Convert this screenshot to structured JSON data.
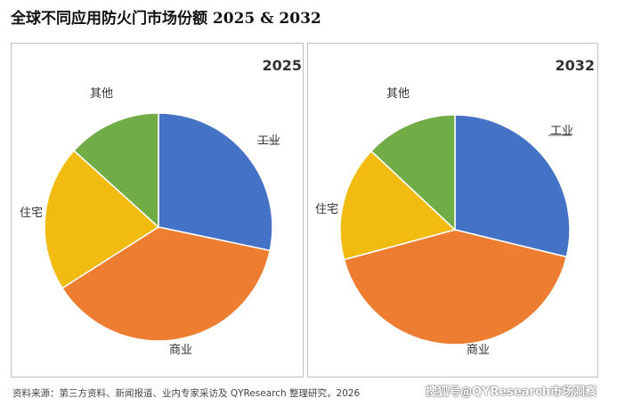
{
  "page": {
    "title": "全球不同应用防火门市场份额 2025 & 2032",
    "source": "资料来源：第三方资料、新闻报道、业内专家采访及 QYResearch 整理研究，2026",
    "watermark": "搜狐号@QYResearch市场洞察"
  },
  "colors": {
    "工业": "#4472c4",
    "商业": "#ed7d31",
    "住宅": "#f1bb0f",
    "其他": "#70ad47",
    "slice_border": "#ffffff"
  },
  "chart_data": [
    {
      "type": "pie",
      "title": "2025",
      "categories": [
        "工业",
        "商业",
        "住宅",
        "其他"
      ],
      "values": [
        28.3,
        37.7,
        20.7,
        13.3
      ],
      "unit": "%",
      "start_angle_deg": 0,
      "direction": "clockwise"
    },
    {
      "type": "pie",
      "title": "2032",
      "categories": [
        "工业",
        "商业",
        "住宅",
        "其他"
      ],
      "values": [
        28.8,
        42.0,
        16.2,
        13.0
      ],
      "unit": "%",
      "start_angle_deg": 0,
      "direction": "clockwise"
    }
  ]
}
